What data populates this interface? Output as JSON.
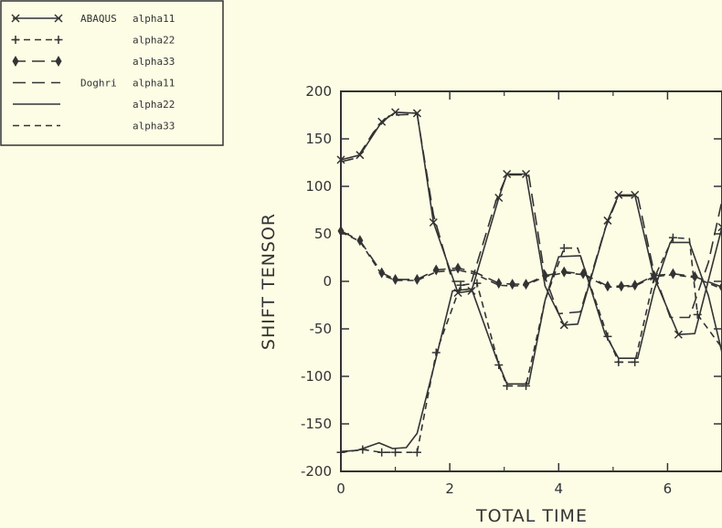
{
  "colors": {
    "background": "#fdfde6",
    "ink": "#333333"
  },
  "chart_data": {
    "type": "line",
    "xlabel": "TOTAL TIME",
    "ylabel": "SHIFT TENSOR",
    "xlim": [
      0,
      7
    ],
    "ylim": [
      -200,
      200
    ],
    "x_ticks": [
      0,
      2,
      4,
      6
    ],
    "y_ticks": [
      200,
      150,
      100,
      50,
      0,
      -50,
      -100,
      -150,
      -200
    ],
    "grid": false,
    "legend_position": "outside-top-left",
    "legend": [
      {
        "group": "ABAQUS",
        "name": "alpha11",
        "marker": "x",
        "dash": "solid"
      },
      {
        "group": "",
        "name": "alpha22",
        "marker": "+",
        "dash": "dashed"
      },
      {
        "group": "",
        "name": "alpha33",
        "marker": "diamond",
        "dash": "long-dash"
      },
      {
        "group": "Doghri",
        "name": "alpha11",
        "marker": "none",
        "dash": "long-dash"
      },
      {
        "group": "",
        "name": "alpha22",
        "marker": "none",
        "dash": "solid"
      },
      {
        "group": "",
        "name": "alpha33",
        "marker": "none",
        "dash": "dashed"
      }
    ],
    "series": [
      {
        "name": "ABAQUS alpha11",
        "marker": "x",
        "dash": "solid",
        "points": [
          [
            0,
            128
          ],
          [
            0.35,
            133
          ],
          [
            0.75,
            168
          ],
          [
            1.0,
            178
          ],
          [
            1.4,
            177
          ],
          [
            1.7,
            62
          ],
          [
            2.15,
            -12
          ],
          [
            2.4,
            -10
          ],
          [
            2.9,
            88
          ],
          [
            3.05,
            113
          ],
          [
            3.4,
            113
          ],
          [
            3.75,
            -5
          ],
          [
            4.1,
            -46
          ],
          [
            4.35,
            -45
          ],
          [
            4.9,
            64
          ],
          [
            5.1,
            91
          ],
          [
            5.4,
            91
          ],
          [
            5.75,
            5
          ],
          [
            6.2,
            -56
          ],
          [
            6.5,
            -55
          ],
          [
            7.0,
            57
          ]
        ],
        "marker_points": [
          [
            0,
            128
          ],
          [
            0.35,
            133
          ],
          [
            0.75,
            168
          ],
          [
            1.0,
            178
          ],
          [
            1.4,
            177
          ],
          [
            1.7,
            62
          ],
          [
            2.15,
            -12
          ],
          [
            2.4,
            -10
          ],
          [
            2.9,
            88
          ],
          [
            3.05,
            113
          ],
          [
            3.4,
            113
          ],
          [
            4.1,
            -46
          ],
          [
            4.9,
            64
          ],
          [
            5.1,
            91
          ],
          [
            5.4,
            91
          ],
          [
            5.75,
            5
          ],
          [
            6.2,
            -56
          ],
          [
            7.0,
            57
          ]
        ]
      },
      {
        "name": "ABAQUS alpha22",
        "marker": "+",
        "dash": "dashed",
        "points": [
          [
            0,
            -180
          ],
          [
            0.4,
            -177
          ],
          [
            0.75,
            -180
          ],
          [
            1.0,
            -180
          ],
          [
            1.4,
            -180
          ],
          [
            1.75,
            -75
          ],
          [
            2.2,
            -4
          ],
          [
            2.5,
            -2
          ],
          [
            2.9,
            -88
          ],
          [
            3.05,
            -110
          ],
          [
            3.4,
            -110
          ],
          [
            3.75,
            -20
          ],
          [
            4.1,
            35
          ],
          [
            4.35,
            35
          ],
          [
            4.9,
            -58
          ],
          [
            5.1,
            -85
          ],
          [
            5.4,
            -85
          ],
          [
            5.75,
            3
          ],
          [
            6.1,
            46
          ],
          [
            6.4,
            45
          ],
          [
            6.55,
            -35
          ],
          [
            7.0,
            -70
          ]
        ],
        "marker_points": [
          [
            0,
            -180
          ],
          [
            0.4,
            -177
          ],
          [
            0.75,
            -180
          ],
          [
            1.0,
            -180
          ],
          [
            1.4,
            -180
          ],
          [
            1.75,
            -75
          ],
          [
            2.2,
            -4
          ],
          [
            2.5,
            -2
          ],
          [
            2.9,
            -88
          ],
          [
            3.05,
            -110
          ],
          [
            3.4,
            -110
          ],
          [
            4.1,
            35
          ],
          [
            4.9,
            -58
          ],
          [
            5.1,
            -85
          ],
          [
            5.4,
            -85
          ],
          [
            5.75,
            3
          ],
          [
            6.1,
            46
          ],
          [
            6.55,
            -35
          ]
        ]
      },
      {
        "name": "ABAQUS alpha33",
        "marker": "diamond",
        "dash": "long-dash",
        "points": [
          [
            0,
            53
          ],
          [
            0.35,
            43
          ],
          [
            0.75,
            9
          ],
          [
            1.0,
            2
          ],
          [
            1.4,
            2
          ],
          [
            1.75,
            12
          ],
          [
            2.15,
            14
          ],
          [
            2.45,
            10
          ],
          [
            2.9,
            -2
          ],
          [
            3.15,
            -3
          ],
          [
            3.4,
            -3
          ],
          [
            3.75,
            6
          ],
          [
            4.1,
            10
          ],
          [
            4.45,
            8
          ],
          [
            4.9,
            -5
          ],
          [
            5.15,
            -5
          ],
          [
            5.4,
            -4
          ],
          [
            5.75,
            6
          ],
          [
            6.1,
            8
          ],
          [
            6.5,
            5
          ],
          [
            7.0,
            -6
          ]
        ],
        "marker_points": [
          [
            0,
            53
          ],
          [
            0.35,
            43
          ],
          [
            0.75,
            9
          ],
          [
            1.0,
            2
          ],
          [
            1.4,
            2
          ],
          [
            1.75,
            12
          ],
          [
            2.15,
            14
          ],
          [
            2.9,
            -2
          ],
          [
            3.15,
            -3
          ],
          [
            3.4,
            -3
          ],
          [
            3.75,
            6
          ],
          [
            4.1,
            10
          ],
          [
            4.45,
            8
          ],
          [
            4.9,
            -5
          ],
          [
            5.15,
            -5
          ],
          [
            5.4,
            -4
          ],
          [
            5.75,
            6
          ],
          [
            6.1,
            8
          ],
          [
            6.5,
            5
          ],
          [
            7.0,
            -6
          ]
        ]
      },
      {
        "name": "Doghri alpha11",
        "marker": "none",
        "dash": "long-dash",
        "points": [
          [
            0,
            126
          ],
          [
            0.3,
            130
          ],
          [
            0.6,
            157
          ],
          [
            0.9,
            175
          ],
          [
            1.4,
            176
          ],
          [
            1.7,
            70
          ],
          [
            2.05,
            0
          ],
          [
            2.4,
            0
          ],
          [
            2.85,
            85
          ],
          [
            3.05,
            112
          ],
          [
            3.45,
            112
          ],
          [
            3.75,
            4
          ],
          [
            4.0,
            -34
          ],
          [
            4.4,
            -32
          ],
          [
            4.85,
            55
          ],
          [
            5.1,
            90
          ],
          [
            5.45,
            90
          ],
          [
            5.75,
            10
          ],
          [
            6.05,
            -38
          ],
          [
            6.4,
            -38
          ],
          [
            6.75,
            20
          ],
          [
            7.0,
            85
          ]
        ]
      },
      {
        "name": "Doghri alpha22",
        "marker": "none",
        "dash": "solid",
        "points": [
          [
            0,
            -179
          ],
          [
            0.3,
            -178
          ],
          [
            0.7,
            -170
          ],
          [
            0.95,
            -176
          ],
          [
            1.2,
            -175
          ],
          [
            1.4,
            -160
          ],
          [
            1.75,
            -80
          ],
          [
            2.05,
            -10
          ],
          [
            2.4,
            -8
          ],
          [
            2.85,
            -80
          ],
          [
            3.05,
            -108
          ],
          [
            3.45,
            -108
          ],
          [
            3.75,
            -20
          ],
          [
            4.0,
            26
          ],
          [
            4.4,
            27
          ],
          [
            4.85,
            -55
          ],
          [
            5.1,
            -81
          ],
          [
            5.45,
            -81
          ],
          [
            5.75,
            -10
          ],
          [
            6.05,
            41
          ],
          [
            6.4,
            41
          ],
          [
            6.75,
            -15
          ],
          [
            7.0,
            -75
          ]
        ]
      },
      {
        "name": "Doghri alpha33",
        "marker": "none",
        "dash": "dashed",
        "points": [
          [
            0,
            52
          ],
          [
            0.35,
            42
          ],
          [
            0.75,
            7
          ],
          [
            1.0,
            1
          ],
          [
            1.4,
            1
          ],
          [
            1.75,
            10
          ],
          [
            2.15,
            12
          ],
          [
            2.45,
            8
          ],
          [
            2.9,
            -4
          ],
          [
            3.15,
            -5
          ],
          [
            3.4,
            -4
          ],
          [
            3.75,
            5
          ],
          [
            4.1,
            9
          ],
          [
            4.45,
            7
          ],
          [
            4.9,
            -6
          ],
          [
            5.15,
            -6
          ],
          [
            5.4,
            -5
          ],
          [
            5.75,
            5
          ],
          [
            6.1,
            7
          ],
          [
            6.5,
            4
          ],
          [
            7.0,
            -8
          ]
        ]
      }
    ]
  }
}
